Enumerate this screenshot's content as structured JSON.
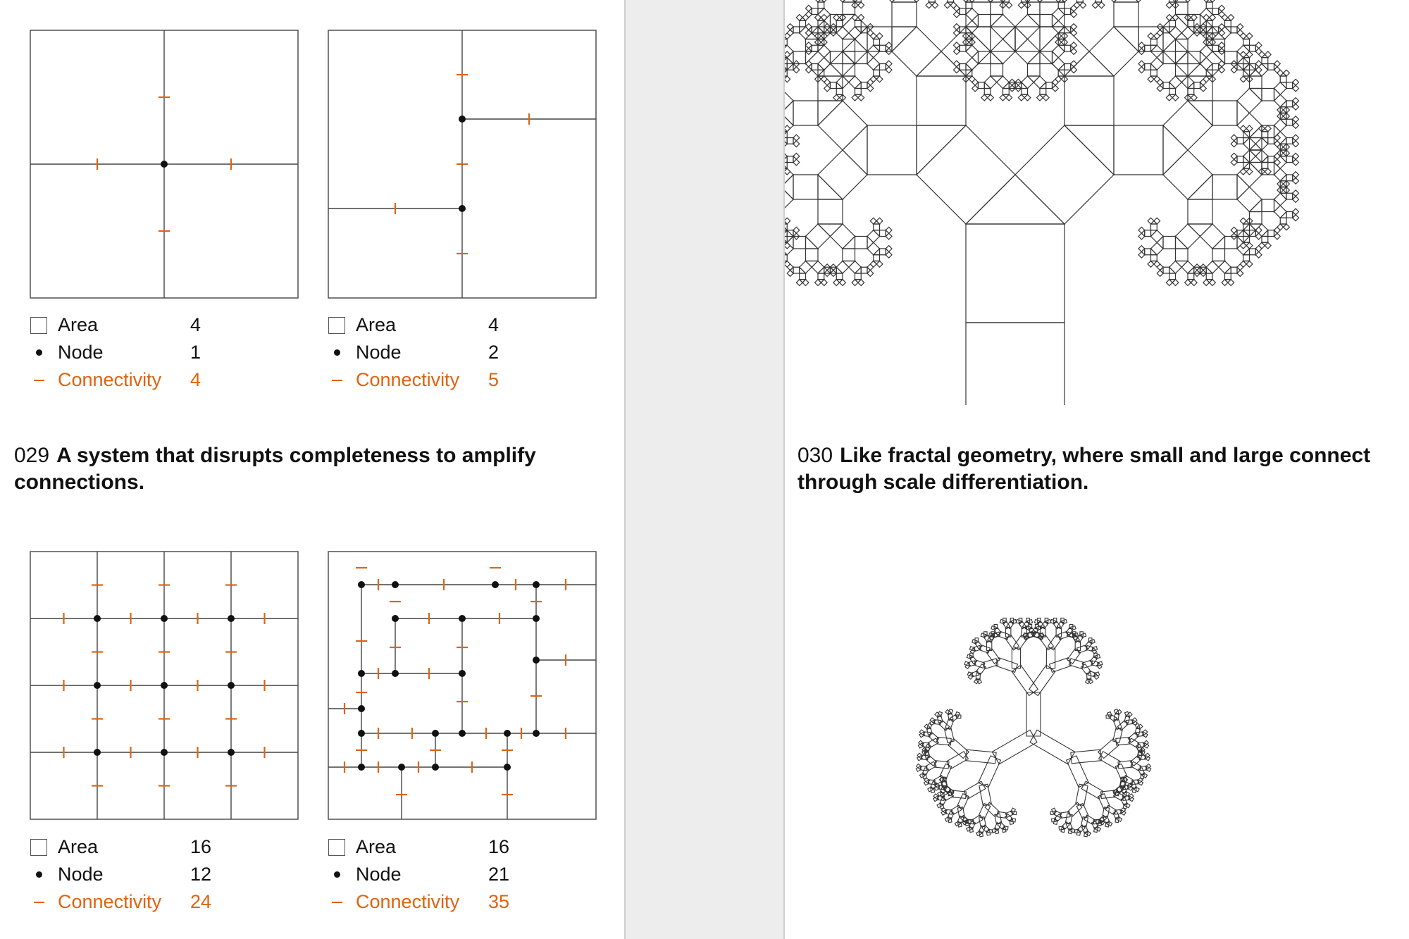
{
  "left": {
    "caption": {
      "number": "029",
      "text": "A system that disrupts completeness to amplify connections."
    },
    "diagrams": [
      {
        "legend": {
          "area_label": "Area",
          "area_value": "4",
          "node_label": "Node",
          "node_value": "1",
          "connectivity_label": "Connectivity",
          "connectivity_value": "4"
        }
      },
      {
        "legend": {
          "area_label": "Area",
          "area_value": "4",
          "node_label": "Node",
          "node_value": "2",
          "connectivity_label": "Connectivity",
          "connectivity_value": "5"
        }
      },
      {
        "legend": {
          "area_label": "Area",
          "area_value": "16",
          "node_label": "Node",
          "node_value": "12",
          "connectivity_label": "Connectivity",
          "connectivity_value": "24"
        }
      },
      {
        "legend": {
          "area_label": "Area",
          "area_value": "16",
          "node_label": "Node",
          "node_value": "21",
          "connectivity_label": "Connectivity",
          "connectivity_value": "35"
        }
      }
    ]
  },
  "right": {
    "caption": {
      "number": "030",
      "text": "Like fractal geometry, where small and large connect through scale differentiation."
    }
  },
  "colors": {
    "accent": "#e0630f",
    "line": "#444444",
    "node": "#111111"
  },
  "icons": [
    "area-square-icon",
    "node-dot-icon",
    "connectivity-dash-icon"
  ]
}
